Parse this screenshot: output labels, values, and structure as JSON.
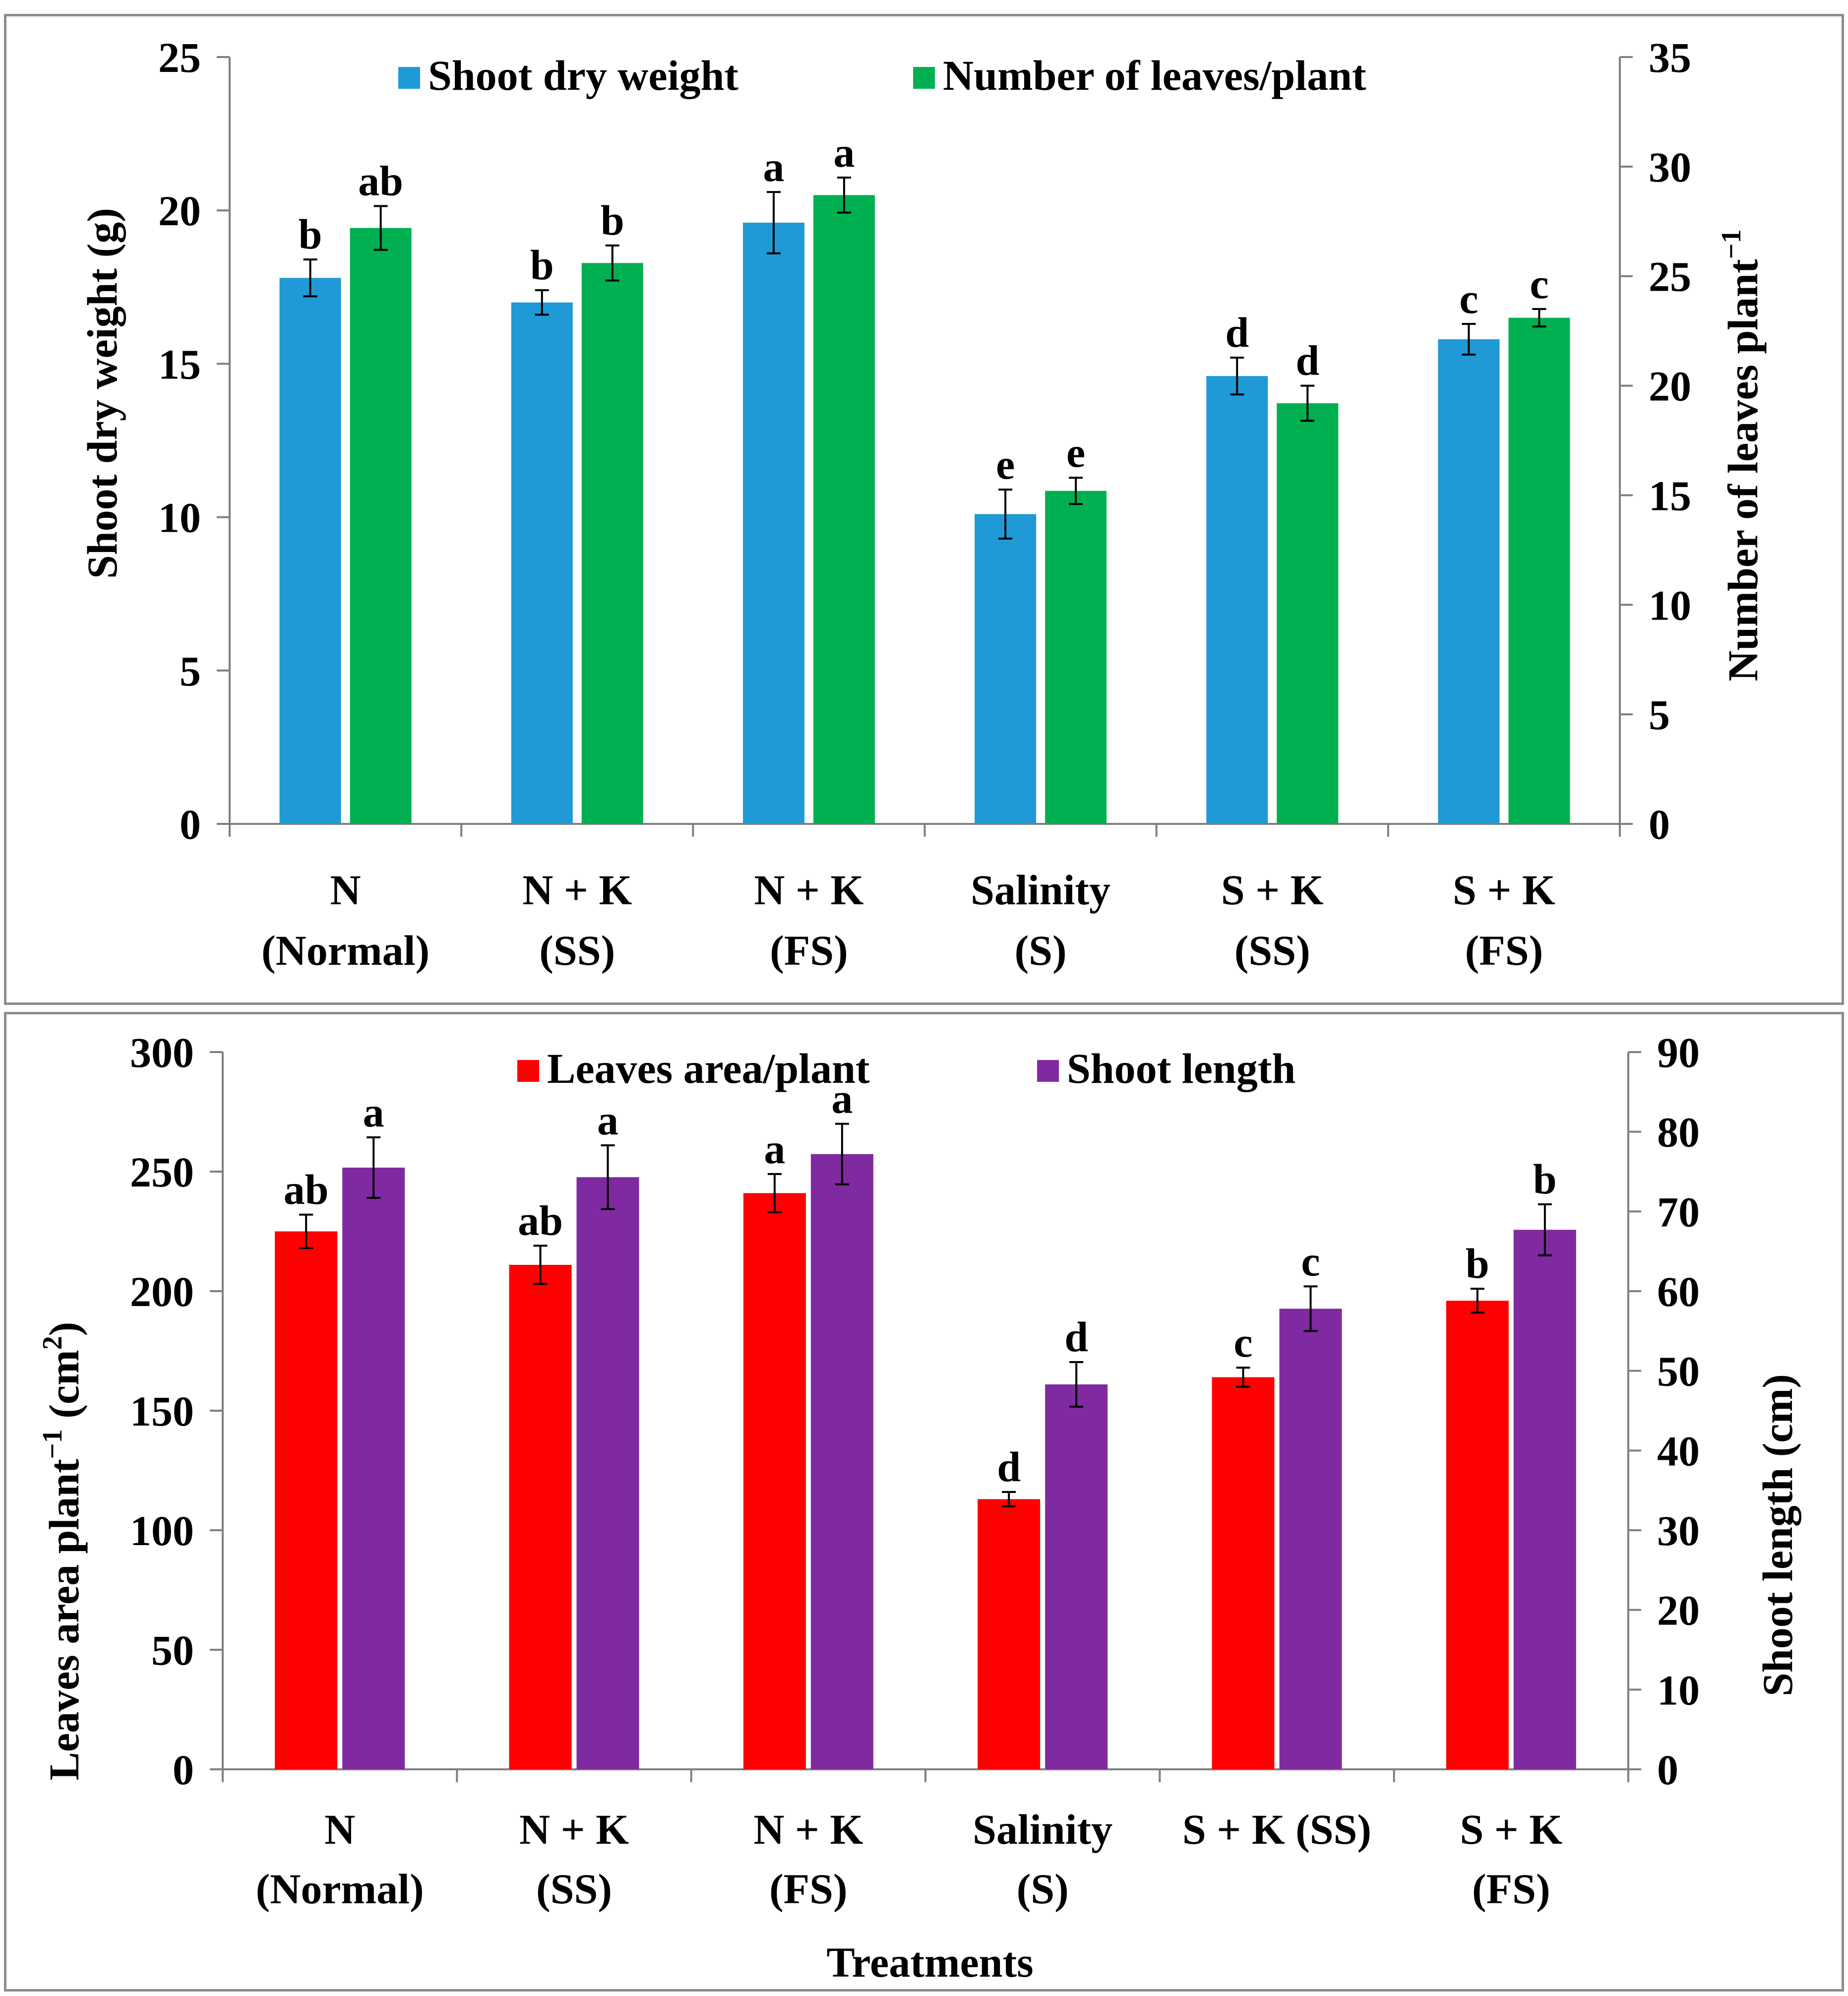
{
  "colors": {
    "shoot_dry_weight": "#1f9ad6",
    "leaves_count": "#00b050",
    "leaf_area": "#ff0000",
    "shoot_length": "#7f2aa0",
    "axis": "#7f7f7f",
    "text": "#000000"
  },
  "chart_data": [
    {
      "type": "bar",
      "id": "top",
      "categories": [
        [
          "N",
          "(Normal)"
        ],
        [
          "N + K",
          "(SS)"
        ],
        [
          "N + K",
          "(FS)"
        ],
        [
          "Salinity",
          "(S)"
        ],
        [
          "S + K",
          "(SS)"
        ],
        [
          "S + K",
          "(FS)"
        ]
      ],
      "legend": [
        "Shoot dry weight",
        "Number of leaves/plant"
      ],
      "ylabel_left": "Shoot dry weight (g)",
      "ylabel_right": "Number of leaves plant",
      "ylabel_right_sup": "−1",
      "xlabel": "",
      "ylim_left": [
        0,
        25
      ],
      "ylim_right": [
        0,
        35
      ],
      "yticks_left": [
        0,
        5,
        10,
        15,
        20,
        25
      ],
      "yticks_right": [
        0,
        5,
        10,
        15,
        20,
        25,
        30,
        35
      ],
      "series": [
        {
          "name": "Shoot dry weight",
          "axis": "left",
          "color_key": "shoot_dry_weight",
          "values": [
            17.8,
            17.0,
            19.6,
            10.1,
            14.6,
            15.8
          ],
          "errors": [
            0.6,
            0.4,
            1.0,
            0.8,
            0.6,
            0.5
          ],
          "letters": [
            "b",
            "b",
            "a",
            "e",
            "d",
            "c"
          ]
        },
        {
          "name": "Number of leaves/plant",
          "axis": "right",
          "color_key": "leaves_count",
          "values": [
            27.2,
            25.6,
            28.7,
            15.2,
            19.2,
            23.1
          ],
          "errors": [
            1.0,
            0.8,
            0.8,
            0.6,
            0.8,
            0.4
          ],
          "letters": [
            "ab",
            "b",
            "a",
            "e",
            "d",
            "c"
          ]
        }
      ]
    },
    {
      "type": "bar",
      "id": "bottom",
      "categories": [
        [
          "N",
          "(Normal)"
        ],
        [
          "N + K",
          "(SS)"
        ],
        [
          "N + K",
          "(FS)"
        ],
        [
          "Salinity",
          "(S)"
        ],
        [
          "S + K (SS)"
        ],
        [
          "S + K",
          "(FS)"
        ]
      ],
      "legend": [
        "Leaves area/plant",
        "Shoot length"
      ],
      "ylabel_left": "Leaves area plant",
      "ylabel_left_sup": "−1",
      "ylabel_left_suffix": " (cm",
      "ylabel_left_suffix_sup": "2",
      "ylabel_left_end": ")",
      "ylabel_right": "Shoot length (cm)",
      "xlabel": "Treatments",
      "ylim_left": [
        0,
        300
      ],
      "ylim_right": [
        0,
        90
      ],
      "yticks_left": [
        0,
        50,
        100,
        150,
        200,
        250,
        300
      ],
      "yticks_right": [
        0,
        10,
        20,
        30,
        40,
        50,
        60,
        70,
        80,
        90
      ],
      "series": [
        {
          "name": "Leaves area/plant",
          "axis": "left",
          "color_key": "leaf_area",
          "values": [
            225,
            211,
            241,
            113,
            164,
            196
          ],
          "errors": [
            7,
            8,
            8,
            3,
            4,
            5
          ],
          "letters": [
            "ab",
            "ab",
            "a",
            "d",
            "c",
            "b"
          ]
        },
        {
          "name": "Shoot length",
          "axis": "right",
          "color_key": "shoot_length",
          "values": [
            75.5,
            74.3,
            77.2,
            48.3,
            57.8,
            67.7
          ],
          "errors": [
            3.8,
            4.0,
            3.8,
            2.8,
            2.8,
            3.2
          ],
          "letters": [
            "a",
            "a",
            "a",
            "d",
            "c",
            "b"
          ]
        }
      ]
    }
  ]
}
